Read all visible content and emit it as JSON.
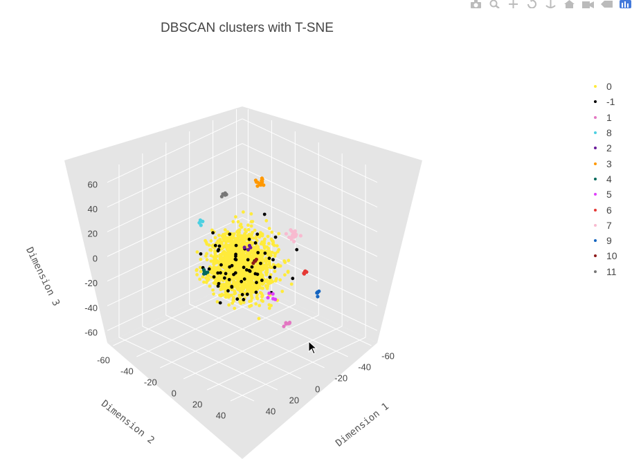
{
  "chart_data": {
    "type": "scatter",
    "title": "DBSCAN clusters with T-SNE",
    "xlabel": "Dimension 1",
    "ylabel": "Dimension 2",
    "zlabel": "Dimension 3",
    "x_ticks": [
      "-60",
      "-40",
      "-20",
      "0",
      "20",
      "40"
    ],
    "y_ticks": [
      "-60",
      "-40",
      "-20",
      "0",
      "20",
      "40"
    ],
    "z_ticks": [
      "60",
      "40",
      "20",
      "0",
      "-20",
      "-40",
      "-60"
    ],
    "xlim": [
      -65,
      50
    ],
    "ylim": [
      -65,
      50
    ],
    "zlim": [
      -70,
      70
    ],
    "legend_position": "right",
    "series": [
      {
        "name": "0",
        "color": "#ffeb3b",
        "count": 1400,
        "center": [
          0,
          0,
          0
        ],
        "spread": [
          16,
          16,
          20
        ]
      },
      {
        "name": "-1",
        "color": "#000000",
        "count": 65,
        "center": [
          0,
          0,
          0
        ],
        "spread": [
          22,
          22,
          26
        ]
      },
      {
        "name": "1",
        "color": "#e377c2",
        "count": 7,
        "center": [
          -8,
          30,
          -38
        ],
        "spread": [
          3,
          3,
          3
        ]
      },
      {
        "name": "8",
        "color": "#4dd0e1",
        "count": 5,
        "center": [
          10,
          -25,
          28
        ],
        "spread": [
          2,
          2,
          2
        ]
      },
      {
        "name": "2",
        "color": "#6a1b9a",
        "count": 4,
        "center": [
          -6,
          -2,
          10
        ],
        "spread": [
          3,
          3,
          3
        ]
      },
      {
        "name": "3",
        "color": "#ff9800",
        "count": 16,
        "center": [
          -22,
          -6,
          55
        ],
        "spread": [
          3,
          3,
          3
        ]
      },
      {
        "name": "4",
        "color": "#00695c",
        "count": 5,
        "center": [
          12,
          -20,
          -10
        ],
        "spread": [
          2,
          2,
          2
        ]
      },
      {
        "name": "5",
        "color": "#e040fb",
        "count": 5,
        "center": [
          -10,
          15,
          -22
        ],
        "spread": [
          3,
          3,
          3
        ]
      },
      {
        "name": "6",
        "color": "#e53935",
        "count": 6,
        "center": [
          -32,
          22,
          -10
        ],
        "spread": [
          1.5,
          1.5,
          1.5
        ]
      },
      {
        "name": "7",
        "color": "#f8bbd0",
        "count": 18,
        "center": [
          -35,
          8,
          12
        ],
        "spread": [
          3,
          3,
          3
        ]
      },
      {
        "name": "9",
        "color": "#1565c0",
        "count": 5,
        "center": [
          -25,
          38,
          -18
        ],
        "spread": [
          2,
          2,
          2
        ]
      },
      {
        "name": "10",
        "color": "#8e1b1b",
        "count": 3,
        "center": [
          -5,
          5,
          4
        ],
        "spread": [
          3,
          3,
          3
        ]
      },
      {
        "name": "11",
        "color": "#777777",
        "count": 5,
        "center": [
          -6,
          -22,
          44
        ],
        "spread": [
          2,
          2,
          2
        ]
      }
    ]
  },
  "modebar": {
    "icons": [
      "camera-icon",
      "zoom-icon",
      "pan-icon",
      "orbit-icon",
      "turntable-icon",
      "home-icon",
      "camera-view-icon",
      "hover-icon",
      "plotly-logo-icon"
    ]
  }
}
